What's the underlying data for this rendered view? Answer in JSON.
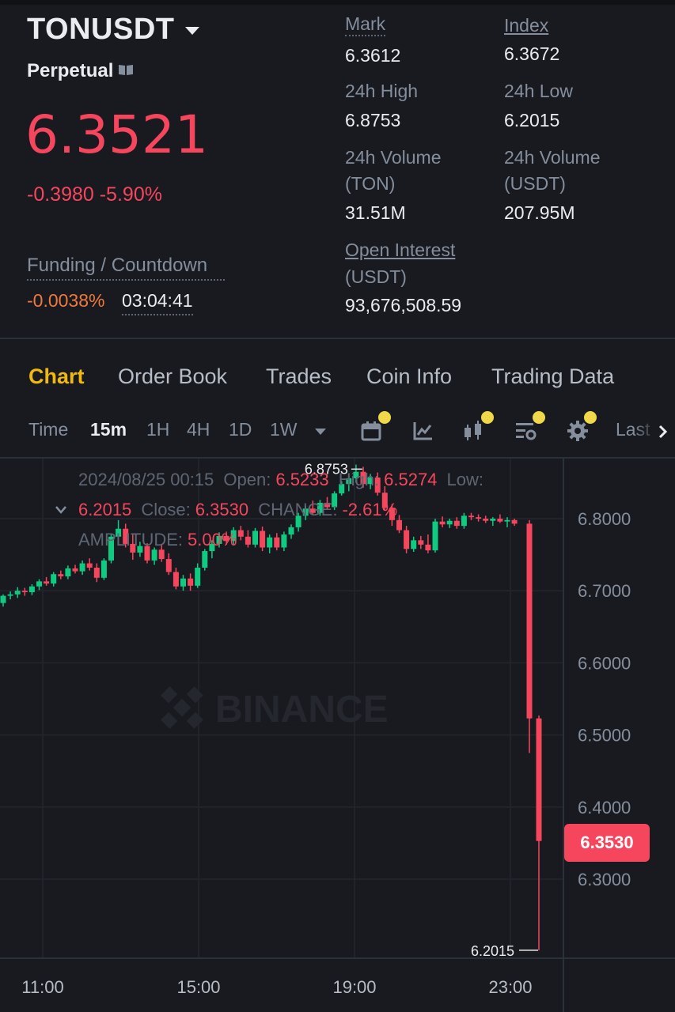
{
  "header": {
    "symbol": "TONUSDT",
    "contract_type": "Perpetual",
    "last_price": "6.3521",
    "change": "-0.3980 -5.90%",
    "funding_label": "Funding / Countdown",
    "funding_rate": "-0.0038%",
    "countdown": "03:04:41"
  },
  "stats": {
    "mark_label": "Mark",
    "mark_value": "6.3612",
    "index_label": "Index",
    "index_value": "6.3672",
    "high_label": "24h High",
    "high_value": "6.8753",
    "low_label": "24h Low",
    "low_value": "6.2015",
    "vol_ton_label_1": "24h Volume",
    "vol_ton_label_2": "(TON)",
    "vol_ton_value": "31.51M",
    "vol_usdt_label_1": "24h Volume",
    "vol_usdt_label_2": "(USDT)",
    "vol_usdt_value": "207.95M",
    "oi_label_1": "Open Interest",
    "oi_label_2": "(USDT)",
    "oi_value": "93,676,508.59"
  },
  "tabs": [
    "Chart",
    "Order Book",
    "Trades",
    "Coin Info",
    "Trading Data"
  ],
  "active_tab": "Chart",
  "toolbar": {
    "time_label": "Time",
    "intervals": [
      "15m",
      "1H",
      "4H",
      "1D",
      "1W"
    ],
    "active_interval": "15m",
    "more_label": "Last",
    "tools": [
      "calendar-icon",
      "indicator-icon",
      "candle-type-icon",
      "layout-settings-icon",
      "gear-icon"
    ]
  },
  "ohlc": {
    "date": "2024/08/25 00:15",
    "open_label": "Open:",
    "open": "6.5233",
    "high_label": "High:",
    "high": "6.5274",
    "low_label": "Low:",
    "low": "6.2015",
    "close_label": "Close:",
    "close": "6.3530",
    "change_label": "CHANGE:",
    "change": "-2.61%",
    "amplitude_label": "AMPLITUDE:",
    "amplitude": "5.00%"
  },
  "watermark": "BINANCE",
  "colors": {
    "up": "#0ecb81",
    "down": "#f6465d",
    "accent": "#f0b90b",
    "bg": "#181a20"
  },
  "chart_data": {
    "type": "candlestick",
    "y_ticks": [
      "6.8000",
      "6.7000",
      "6.6000",
      "6.5000",
      "6.4000",
      "6.3000"
    ],
    "x_ticks": [
      "11:00",
      "15:00",
      "19:00",
      "23:00"
    ],
    "ylim": [
      6.19,
      6.89
    ],
    "high_marker": "6.8753",
    "low_marker": "6.2015",
    "current_price": "6.3530",
    "candles": [
      [
        6.683,
        6.695,
        6.678,
        6.693
      ],
      [
        6.693,
        6.699,
        6.688,
        6.695
      ],
      [
        6.695,
        6.705,
        6.69,
        6.7
      ],
      [
        6.7,
        6.704,
        6.693,
        6.698
      ],
      [
        6.698,
        6.709,
        6.694,
        6.706
      ],
      [
        6.706,
        6.716,
        6.701,
        6.713
      ],
      [
        6.713,
        6.719,
        6.707,
        6.71
      ],
      [
        6.71,
        6.726,
        6.706,
        6.723
      ],
      [
        6.723,
        6.728,
        6.716,
        6.72
      ],
      [
        6.72,
        6.735,
        6.716,
        6.731
      ],
      [
        6.731,
        6.736,
        6.724,
        6.727
      ],
      [
        6.727,
        6.742,
        6.722,
        6.738
      ],
      [
        6.738,
        6.745,
        6.728,
        6.732
      ],
      [
        6.732,
        6.738,
        6.712,
        6.718
      ],
      [
        6.718,
        6.745,
        6.715,
        6.742
      ],
      [
        6.742,
        6.778,
        6.738,
        6.775
      ],
      [
        6.775,
        6.798,
        6.765,
        6.786
      ],
      [
        6.786,
        6.793,
        6.76,
        6.765
      ],
      [
        6.765,
        6.778,
        6.743,
        6.753
      ],
      [
        6.753,
        6.768,
        6.747,
        6.762
      ],
      [
        6.762,
        6.766,
        6.738,
        6.742
      ],
      [
        6.742,
        6.76,
        6.736,
        6.757
      ],
      [
        6.757,
        6.764,
        6.74,
        6.744
      ],
      [
        6.744,
        6.752,
        6.722,
        6.726
      ],
      [
        6.726,
        6.732,
        6.702,
        6.706
      ],
      [
        6.706,
        6.722,
        6.7,
        6.717
      ],
      [
        6.717,
        6.724,
        6.7,
        6.707
      ],
      [
        6.707,
        6.738,
        6.704,
        6.732
      ],
      [
        6.732,
        6.758,
        6.728,
        6.755
      ],
      [
        6.755,
        6.77,
        6.745,
        6.765
      ],
      [
        6.765,
        6.781,
        6.76,
        6.776
      ],
      [
        6.776,
        6.782,
        6.764,
        6.769
      ],
      [
        6.769,
        6.788,
        6.764,
        6.784
      ],
      [
        6.784,
        6.79,
        6.77,
        6.775
      ],
      [
        6.775,
        6.784,
        6.76,
        6.764
      ],
      [
        6.764,
        6.787,
        6.76,
        6.783
      ],
      [
        6.783,
        6.789,
        6.755,
        6.76
      ],
      [
        6.76,
        6.778,
        6.752,
        6.774
      ],
      [
        6.774,
        6.78,
        6.756,
        6.76
      ],
      [
        6.76,
        6.782,
        6.755,
        6.778
      ],
      [
        6.778,
        6.792,
        6.772,
        6.788
      ],
      [
        6.788,
        6.808,
        6.782,
        6.804
      ],
      [
        6.804,
        6.818,
        6.798,
        6.814
      ],
      [
        6.814,
        6.825,
        6.805,
        6.808
      ],
      [
        6.808,
        6.826,
        6.804,
        6.822
      ],
      [
        6.822,
        6.83,
        6.812,
        6.816
      ],
      [
        6.816,
        6.838,
        6.812,
        6.835
      ],
      [
        6.835,
        6.852,
        6.832,
        6.848
      ],
      [
        6.848,
        6.862,
        6.838,
        6.856
      ],
      [
        6.856,
        6.875,
        6.85,
        6.865
      ],
      [
        6.865,
        6.872,
        6.843,
        6.848
      ],
      [
        6.848,
        6.862,
        6.841,
        6.857
      ],
      [
        6.857,
        6.864,
        6.832,
        6.836
      ],
      [
        6.836,
        6.845,
        6.812,
        6.815
      ],
      [
        6.815,
        6.82,
        6.79,
        6.798
      ],
      [
        6.798,
        6.805,
        6.78,
        6.784
      ],
      [
        6.784,
        6.79,
        6.752,
        6.758
      ],
      [
        6.758,
        6.775,
        6.754,
        6.77
      ],
      [
        6.77,
        6.776,
        6.758,
        6.764
      ],
      [
        6.764,
        6.778,
        6.752,
        6.756
      ],
      [
        6.756,
        6.8,
        6.753,
        6.796
      ],
      [
        6.796,
        6.803,
        6.788,
        6.792
      ],
      [
        6.792,
        6.8,
        6.787,
        6.797
      ],
      [
        6.797,
        6.802,
        6.786,
        6.79
      ],
      [
        6.79,
        6.808,
        6.786,
        6.804
      ],
      [
        6.804,
        6.808,
        6.798,
        6.802
      ],
      [
        6.802,
        6.806,
        6.796,
        6.8
      ],
      [
        6.8,
        6.804,
        6.794,
        6.797
      ],
      [
        6.797,
        6.802,
        6.79,
        6.8
      ],
      [
        6.8,
        6.806,
        6.794,
        6.796
      ],
      [
        6.796,
        6.802,
        6.788,
        6.798
      ],
      [
        6.798,
        6.8,
        6.79,
        6.793
      ],
      [
        6.793,
        6.798,
        6.475,
        6.523
      ],
      [
        6.523,
        6.527,
        6.2015,
        6.353
      ]
    ]
  }
}
